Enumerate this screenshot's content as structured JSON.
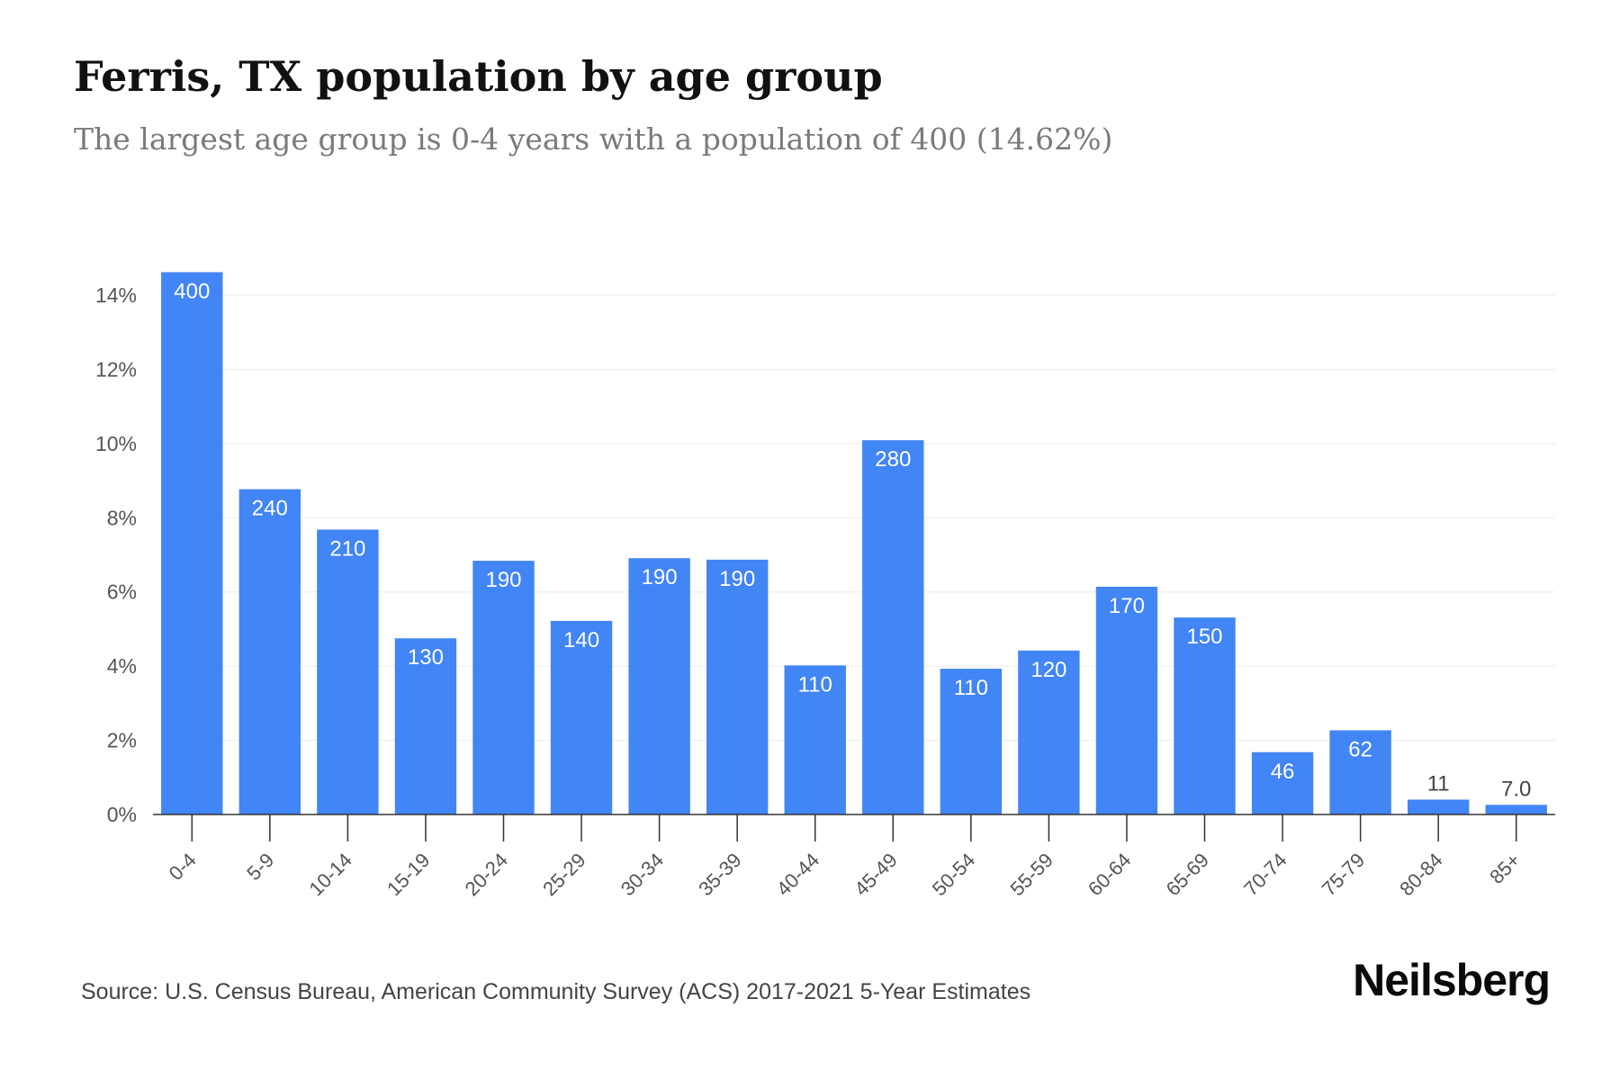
{
  "header": {
    "title": "Ferris, TX population by age group",
    "subtitle": "The largest age group is 0-4 years with a population of 400 (14.62%)"
  },
  "footer": {
    "source": "Source: U.S. Census Bureau, American Community Survey (ACS) 2017-2021 5-Year Estimates",
    "brand": "Neilsberg"
  },
  "colors": {
    "bar": "#4285f4",
    "label_inside": "#ffffff",
    "label_outside": "#444444",
    "grid": "#ececec",
    "axis": "#333333"
  },
  "chart_data": {
    "type": "bar",
    "title": "Ferris, TX population by age group",
    "subtitle": "The largest age group is 0-4 years with a population of 400 (14.62%)",
    "xlabel": "",
    "ylabel": "",
    "ylim": [
      0,
      14
    ],
    "yticks": [
      0,
      2,
      4,
      6,
      8,
      10,
      12,
      14
    ],
    "ytick_labels": [
      "0%",
      "2%",
      "4%",
      "6%",
      "8%",
      "10%",
      "12%",
      "14%"
    ],
    "grid": true,
    "legend": "none",
    "categories": [
      "0-4",
      "5-9",
      "10-14",
      "15-19",
      "20-24",
      "25-29",
      "30-34",
      "35-39",
      "40-44",
      "45-49",
      "50-54",
      "55-59",
      "60-64",
      "65-69",
      "70-74",
      "75-79",
      "80-84",
      "85+"
    ],
    "values": [
      14.62,
      8.77,
      7.68,
      4.75,
      6.84,
      5.22,
      6.91,
      6.87,
      4.02,
      10.09,
      3.93,
      4.42,
      6.14,
      5.31,
      1.68,
      2.27,
      0.4,
      0.26
    ],
    "data_labels": [
      "400",
      "240",
      "210",
      "130",
      "190",
      "140",
      "190",
      "190",
      "110",
      "280",
      "110",
      "120",
      "170",
      "150",
      "46",
      "62",
      "11",
      "7.0"
    ]
  }
}
